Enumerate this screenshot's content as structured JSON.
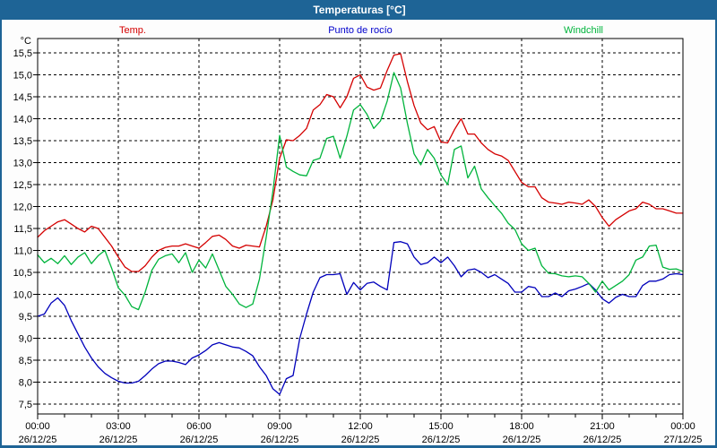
{
  "window": {
    "title": "Temperaturas [°C]",
    "titlebar_color": "#1e6496",
    "frame_color": "#1e6496"
  },
  "legend": [
    {
      "label": "Temp.",
      "color": "#d40000"
    },
    {
      "label": "Punto de rocío",
      "color": "#0000cc"
    },
    {
      "label": "Windchill",
      "color": "#00b43c"
    }
  ],
  "y_axis": {
    "unit": "°C",
    "min": 7.5,
    "max": 15.5,
    "step": 0.5,
    "labels": [
      "15,5",
      "15,0",
      "14,5",
      "14,0",
      "13,5",
      "13,0",
      "12,5",
      "12,0",
      "11,5",
      "11,0",
      "10,5",
      "10,0",
      "9,5",
      "9,0",
      "8,5",
      "8,0",
      "7,5"
    ]
  },
  "x_axis": {
    "ticks": [
      {
        "time": "00:00",
        "date": "26/12/25"
      },
      {
        "time": "03:00",
        "date": "26/12/25"
      },
      {
        "time": "06:00",
        "date": "26/12/25"
      },
      {
        "time": "09:00",
        "date": "26/12/25"
      },
      {
        "time": "12:00",
        "date": "26/12/25"
      },
      {
        "time": "15:00",
        "date": "26/12/25"
      },
      {
        "time": "18:00",
        "date": "26/12/25"
      },
      {
        "time": "21:00",
        "date": "26/12/25"
      },
      {
        "time": "00:00",
        "date": "27/12/25"
      }
    ]
  },
  "chart_data": {
    "type": "line",
    "title": "Temperaturas [°C]",
    "xlabel": "",
    "ylabel": "°C",
    "xlim_hours": [
      0,
      24
    ],
    "ylim": [
      7.5,
      15.5
    ],
    "grid": "dashed",
    "legend_position": "top",
    "x": [
      0,
      0.25,
      0.5,
      0.75,
      1,
      1.25,
      1.5,
      1.75,
      2,
      2.25,
      2.5,
      2.75,
      3,
      3.25,
      3.5,
      3.75,
      4,
      4.25,
      4.5,
      4.75,
      5,
      5.25,
      5.5,
      5.75,
      6,
      6.25,
      6.5,
      6.75,
      7,
      7.25,
      7.5,
      7.75,
      8,
      8.25,
      8.5,
      8.75,
      9,
      9.25,
      9.5,
      9.75,
      10,
      10.25,
      10.5,
      10.75,
      11,
      11.25,
      11.5,
      11.75,
      12,
      12.25,
      12.5,
      12.75,
      13,
      13.25,
      13.5,
      13.75,
      14,
      14.25,
      14.5,
      14.75,
      15,
      15.25,
      15.5,
      15.75,
      16,
      16.25,
      16.5,
      16.75,
      17,
      17.25,
      17.5,
      17.75,
      18,
      18.25,
      18.5,
      18.75,
      19,
      19.25,
      19.5,
      19.75,
      20,
      20.25,
      20.5,
      20.75,
      21,
      21.25,
      21.5,
      21.75,
      22,
      22.25,
      22.5,
      22.75,
      23,
      23.25,
      23.5,
      23.75,
      24
    ],
    "series": [
      {
        "id": "temp",
        "name": "Temp.",
        "color": "#d40000",
        "values": [
          11.3,
          11.45,
          11.55,
          11.65,
          11.7,
          11.6,
          11.5,
          11.42,
          11.55,
          11.5,
          11.3,
          11.1,
          10.85,
          10.62,
          10.52,
          10.52,
          10.65,
          10.85,
          11.0,
          11.07,
          11.1,
          11.1,
          11.15,
          11.1,
          11.05,
          11.18,
          11.32,
          11.35,
          11.25,
          11.1,
          11.05,
          11.12,
          11.1,
          11.08,
          11.55,
          12.15,
          13.1,
          13.52,
          13.5,
          13.62,
          13.78,
          14.2,
          14.32,
          14.55,
          14.5,
          14.25,
          14.5,
          14.92,
          15.0,
          14.72,
          14.65,
          14.7,
          15.1,
          15.45,
          15.48,
          14.85,
          14.3,
          13.9,
          13.75,
          13.82,
          13.47,
          13.45,
          13.75,
          14.0,
          13.65,
          13.65,
          13.45,
          13.3,
          13.2,
          13.15,
          13.05,
          12.8,
          12.55,
          12.45,
          12.45,
          12.2,
          12.1,
          12.08,
          12.05,
          12.1,
          12.08,
          12.05,
          12.15,
          12.0,
          11.75,
          11.55,
          11.7,
          11.8,
          11.9,
          11.95,
          12.1,
          12.05,
          11.95,
          11.95,
          11.9,
          11.85,
          11.85
        ]
      },
      {
        "id": "punto-de-rocio",
        "name": "Punto de rocío",
        "color": "#0000bb",
        "values": [
          9.5,
          9.55,
          9.8,
          9.92,
          9.75,
          9.4,
          9.1,
          8.8,
          8.55,
          8.35,
          8.2,
          8.1,
          8.02,
          7.98,
          7.98,
          8.02,
          8.15,
          8.3,
          8.42,
          8.48,
          8.48,
          8.45,
          8.4,
          8.55,
          8.62,
          8.72,
          8.85,
          8.9,
          8.85,
          8.8,
          8.78,
          8.7,
          8.6,
          8.35,
          8.15,
          7.85,
          7.72,
          8.08,
          8.15,
          9.0,
          9.55,
          10.05,
          10.38,
          10.45,
          10.45,
          10.47,
          10.0,
          10.27,
          10.1,
          10.25,
          10.28,
          10.18,
          10.1,
          11.18,
          11.2,
          11.15,
          10.85,
          10.68,
          10.72,
          10.85,
          10.72,
          10.85,
          10.65,
          10.4,
          10.55,
          10.58,
          10.5,
          10.38,
          10.45,
          10.35,
          10.25,
          10.05,
          10.05,
          10.18,
          10.15,
          9.95,
          9.95,
          10.03,
          9.95,
          10.08,
          10.12,
          10.18,
          10.25,
          10.1,
          9.9,
          9.8,
          9.93,
          10.0,
          9.95,
          9.95,
          10.2,
          10.3,
          10.3,
          10.35,
          10.45,
          10.47,
          10.45
        ]
      },
      {
        "id": "windchill",
        "name": "Windchill",
        "color": "#00b43c",
        "values": [
          10.9,
          10.72,
          10.82,
          10.7,
          10.88,
          10.68,
          10.85,
          10.95,
          10.7,
          10.88,
          11.0,
          10.6,
          10.15,
          9.98,
          9.72,
          9.65,
          10.05,
          10.55,
          10.8,
          10.88,
          10.92,
          10.72,
          10.95,
          10.5,
          10.78,
          10.6,
          10.92,
          10.55,
          10.18,
          10.0,
          9.78,
          9.7,
          9.78,
          10.35,
          11.3,
          12.35,
          13.62,
          12.9,
          12.8,
          12.72,
          12.7,
          13.05,
          13.1,
          13.55,
          13.6,
          13.1,
          13.6,
          14.2,
          14.32,
          14.1,
          13.78,
          13.95,
          14.4,
          15.05,
          14.7,
          13.9,
          13.2,
          12.95,
          13.3,
          13.1,
          12.72,
          12.5,
          13.3,
          13.38,
          12.65,
          12.92,
          12.4,
          12.2,
          12.02,
          11.85,
          11.62,
          11.48,
          11.15,
          11.0,
          11.05,
          10.65,
          10.48,
          10.47,
          10.42,
          10.4,
          10.42,
          10.4,
          10.25,
          10.05,
          10.3,
          10.1,
          10.2,
          10.3,
          10.45,
          10.78,
          10.85,
          11.1,
          11.12,
          10.62,
          10.57,
          10.58,
          10.52
        ]
      }
    ]
  }
}
